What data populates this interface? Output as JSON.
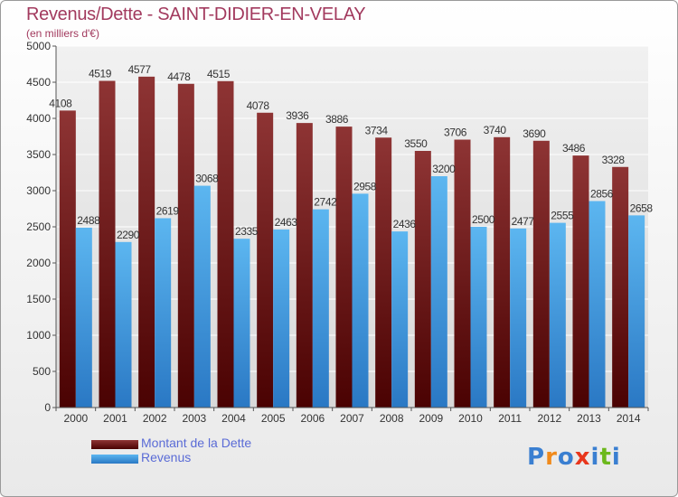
{
  "title": "Revenus/Dette - SAINT-DIDIER-EN-VELAY",
  "subtitle": "(en milliers d'€)",
  "colors": {
    "debt": "#7a1c1c",
    "revenue": "#3a9ae0",
    "title": "#a23a5e",
    "legend_text": "#5a6bd6"
  },
  "logo": {
    "text": "Proxiti",
    "letter_colors": [
      "#3a7fd1",
      "#f08a1c",
      "#3a7fd1",
      "#e8361c",
      "#3a7fd1",
      "#6cb81c",
      "#3a7fd1"
    ]
  },
  "chart_data": {
    "type": "bar",
    "categories": [
      "2000",
      "2001",
      "2002",
      "2003",
      "2004",
      "2005",
      "2006",
      "2007",
      "2008",
      "2009",
      "2010",
      "2011",
      "2012",
      "2013",
      "2014"
    ],
    "series": [
      {
        "name": "Montant de la Dette",
        "values": [
          4108,
          4519,
          4577,
          4478,
          4515,
          4078,
          3936,
          3886,
          3734,
          3550,
          3706,
          3740,
          3690,
          3486,
          3328
        ]
      },
      {
        "name": "Revenus",
        "values": [
          2488,
          2290,
          2619,
          3068,
          2335,
          2463,
          2742,
          2958,
          2436,
          3200,
          2500,
          2477,
          2555,
          2856,
          2658
        ]
      }
    ],
    "yticks": [
      0,
      500,
      1000,
      1500,
      2000,
      2500,
      3000,
      3500,
      4000,
      4500,
      5000
    ],
    "ylim": [
      0,
      5000
    ],
    "grid": true,
    "legend_position": "bottom-left"
  }
}
